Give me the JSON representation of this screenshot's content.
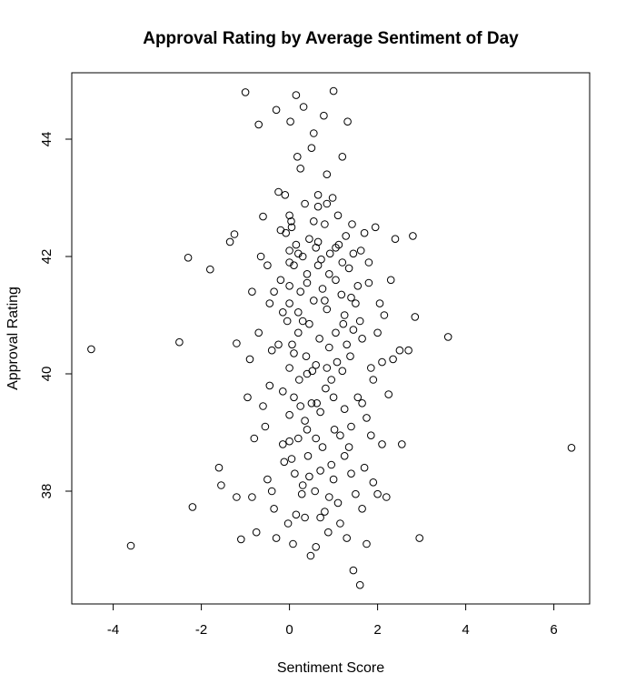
{
  "chart_data": {
    "type": "scatter",
    "title": "Approval Rating by Average Sentiment of Day",
    "xlabel": "Sentiment Score",
    "ylabel": "Approval Rating",
    "xlim": [
      -5,
      7
    ],
    "ylim": [
      36.2,
      45.0
    ],
    "xticks": [
      -4,
      -2,
      0,
      2,
      4,
      6
    ],
    "yticks": [
      38,
      40,
      42,
      44
    ],
    "grid": false,
    "legend": "none",
    "marker": "open-circle",
    "points": [
      [
        -4.5,
        40.42
      ],
      [
        -3.6,
        37.07
      ],
      [
        -2.5,
        40.54
      ],
      [
        -2.3,
        41.98
      ],
      [
        -2.2,
        37.73
      ],
      [
        -1.8,
        41.78
      ],
      [
        -1.6,
        38.4
      ],
      [
        -1.55,
        38.1
      ],
      [
        -1.35,
        42.25
      ],
      [
        -1.25,
        42.38
      ],
      [
        -1.2,
        40.52
      ],
      [
        -1.2,
        37.9
      ],
      [
        -1.1,
        37.18
      ],
      [
        -1.0,
        44.8
      ],
      [
        -0.9,
        40.25
      ],
      [
        -0.85,
        41.4
      ],
      [
        -0.8,
        38.9
      ],
      [
        -0.75,
        37.3
      ],
      [
        -0.7,
        44.25
      ],
      [
        -0.6,
        42.68
      ],
      [
        -0.55,
        39.1
      ],
      [
        -0.5,
        38.2
      ],
      [
        -0.45,
        41.2
      ],
      [
        -0.4,
        40.4
      ],
      [
        -0.35,
        37.7
      ],
      [
        -0.3,
        44.5
      ],
      [
        -0.25,
        43.1
      ],
      [
        -0.2,
        41.6
      ],
      [
        -0.15,
        39.7
      ],
      [
        -0.12,
        38.5
      ],
      [
        -0.08,
        42.4
      ],
      [
        -0.05,
        40.9
      ],
      [
        -0.03,
        37.45
      ],
      [
        0.0,
        41.9
      ],
      [
        0.0,
        41.2
      ],
      [
        0.0,
        40.1
      ],
      [
        0.0,
        38.85
      ],
      [
        0.0,
        42.1
      ],
      [
        0.0,
        41.5
      ],
      [
        0.0,
        39.3
      ],
      [
        0.02,
        44.3
      ],
      [
        0.04,
        42.6
      ],
      [
        0.06,
        40.5
      ],
      [
        0.08,
        37.1
      ],
      [
        0.1,
        41.85
      ],
      [
        0.12,
        38.3
      ],
      [
        0.15,
        42.2
      ],
      [
        0.18,
        43.7
      ],
      [
        0.2,
        40.7
      ],
      [
        0.22,
        39.9
      ],
      [
        0.25,
        41.4
      ],
      [
        0.28,
        37.95
      ],
      [
        0.3,
        42.0
      ],
      [
        0.32,
        44.55
      ],
      [
        0.35,
        39.2
      ],
      [
        0.38,
        40.3
      ],
      [
        0.4,
        41.7
      ],
      [
        0.42,
        38.6
      ],
      [
        0.45,
        42.3
      ],
      [
        0.48,
        36.9
      ],
      [
        0.5,
        43.85
      ],
      [
        0.52,
        40.05
      ],
      [
        0.55,
        41.25
      ],
      [
        0.58,
        38.0
      ],
      [
        0.6,
        42.15
      ],
      [
        0.62,
        39.5
      ],
      [
        0.65,
        43.05
      ],
      [
        0.68,
        40.6
      ],
      [
        0.7,
        37.55
      ],
      [
        0.72,
        41.95
      ],
      [
        0.75,
        38.75
      ],
      [
        0.78,
        44.4
      ],
      [
        0.8,
        42.55
      ],
      [
        0.82,
        39.75
      ],
      [
        0.85,
        41.1
      ],
      [
        0.88,
        37.3
      ],
      [
        0.9,
        40.45
      ],
      [
        0.92,
        42.05
      ],
      [
        0.95,
        38.45
      ],
      [
        0.98,
        43.0
      ],
      [
        1.0,
        44.82
      ],
      [
        1.02,
        39.05
      ],
      [
        1.05,
        41.6
      ],
      [
        1.08,
        40.2
      ],
      [
        1.1,
        37.8
      ],
      [
        1.12,
        42.2
      ],
      [
        1.15,
        38.95
      ],
      [
        1.18,
        41.35
      ],
      [
        1.2,
        43.7
      ],
      [
        1.22,
        40.85
      ],
      [
        1.25,
        39.4
      ],
      [
        1.28,
        42.35
      ],
      [
        1.3,
        37.2
      ],
      [
        1.32,
        44.3
      ],
      [
        1.35,
        41.8
      ],
      [
        1.38,
        40.3
      ],
      [
        1.4,
        38.3
      ],
      [
        1.42,
        42.55
      ],
      [
        1.45,
        36.65
      ],
      [
        1.5,
        41.2
      ],
      [
        1.55,
        39.6
      ],
      [
        1.6,
        36.4
      ],
      [
        1.62,
        42.1
      ],
      [
        1.65,
        40.6
      ],
      [
        1.7,
        38.4
      ],
      [
        1.75,
        37.1
      ],
      [
        1.8,
        41.9
      ],
      [
        1.85,
        40.1
      ],
      [
        1.9,
        38.15
      ],
      [
        1.95,
        42.5
      ],
      [
        2.0,
        40.7
      ],
      [
        2.05,
        41.2
      ],
      [
        2.1,
        38.8
      ],
      [
        2.2,
        37.9
      ],
      [
        2.25,
        39.65
      ],
      [
        2.3,
        41.6
      ],
      [
        2.35,
        40.25
      ],
      [
        2.4,
        42.3
      ],
      [
        2.5,
        40.4
      ],
      [
        2.55,
        38.8
      ],
      [
        2.7,
        40.4
      ],
      [
        2.8,
        42.35
      ],
      [
        2.85,
        40.97
      ],
      [
        2.95,
        37.2
      ],
      [
        3.6,
        40.63
      ],
      [
        6.4,
        38.74
      ],
      [
        -0.6,
        39.45
      ],
      [
        -0.4,
        38.0
      ],
      [
        -0.2,
        42.45
      ],
      [
        0.1,
        39.6
      ],
      [
        0.3,
        38.1
      ],
      [
        0.45,
        40.85
      ],
      [
        0.6,
        37.05
      ],
      [
        0.75,
        41.45
      ],
      [
        0.95,
        39.9
      ],
      [
        1.15,
        37.45
      ],
      [
        1.35,
        38.75
      ],
      [
        1.55,
        41.5
      ],
      [
        1.75,
        39.25
      ],
      [
        -0.95,
        39.6
      ],
      [
        -0.7,
        40.7
      ],
      [
        -0.5,
        41.85
      ],
      [
        -0.3,
        37.2
      ],
      [
        -0.1,
        43.05
      ],
      [
        0.05,
        38.55
      ],
      [
        0.2,
        41.05
      ],
      [
        0.35,
        37.55
      ],
      [
        0.55,
        42.6
      ],
      [
        0.7,
        39.35
      ],
      [
        0.85,
        42.9
      ],
      [
        1.0,
        38.2
      ],
      [
        1.2,
        40.05
      ],
      [
        1.45,
        42.05
      ],
      [
        1.65,
        37.7
      ],
      [
        1.85,
        38.95
      ],
      [
        2.15,
        41.0
      ],
      [
        -0.85,
        37.9
      ],
      [
        -0.65,
        42.0
      ],
      [
        -0.45,
        39.8
      ],
      [
        -0.25,
        40.5
      ],
      [
        0.15,
        37.6
      ],
      [
        0.4,
        39.05
      ],
      [
        0.65,
        42.25
      ],
      [
        0.9,
        37.9
      ],
      [
        1.1,
        42.7
      ],
      [
        1.3,
        40.5
      ],
      [
        1.5,
        37.95
      ],
      [
        1.7,
        42.4
      ],
      [
        1.9,
        39.9
      ],
      [
        2.1,
        40.2
      ],
      [
        0.25,
        43.5
      ],
      [
        0.55,
        44.1
      ],
      [
        0.85,
        43.4
      ],
      [
        0.15,
        44.75
      ],
      [
        0.65,
        42.85
      ],
      [
        0.35,
        42.9
      ],
      [
        0.1,
        40.35
      ],
      [
        0.3,
        40.9
      ],
      [
        0.5,
        39.5
      ],
      [
        0.7,
        38.35
      ],
      [
        0.9,
        41.7
      ],
      [
        1.05,
        40.7
      ],
      [
        0.2,
        38.9
      ],
      [
        0.4,
        41.55
      ],
      [
        0.6,
        40.15
      ],
      [
        0.8,
        37.65
      ],
      [
        1.25,
        41.0
      ],
      [
        1.4,
        39.1
      ],
      [
        1.6,
        40.9
      ],
      [
        1.8,
        41.55
      ],
      [
        2.0,
        37.95
      ],
      [
        -0.15,
        41.05
      ],
      [
        0.05,
        42.5
      ],
      [
        0.25,
        39.45
      ],
      [
        0.45,
        38.25
      ],
      [
        0.65,
        41.85
      ],
      [
        0.85,
        40.1
      ],
      [
        1.05,
        42.15
      ],
      [
        1.25,
        38.6
      ],
      [
        1.45,
        40.75
      ],
      [
        1.65,
        39.5
      ],
      [
        -0.35,
        41.4
      ],
      [
        -0.15,
        38.8
      ],
      [
        0.0,
        42.7
      ],
      [
        0.2,
        42.05
      ],
      [
        0.4,
        40.0
      ],
      [
        0.6,
        38.9
      ],
      [
        0.8,
        41.25
      ],
      [
        1.0,
        39.6
      ],
      [
        1.2,
        41.9
      ],
      [
        1.4,
        41.3
      ]
    ]
  }
}
